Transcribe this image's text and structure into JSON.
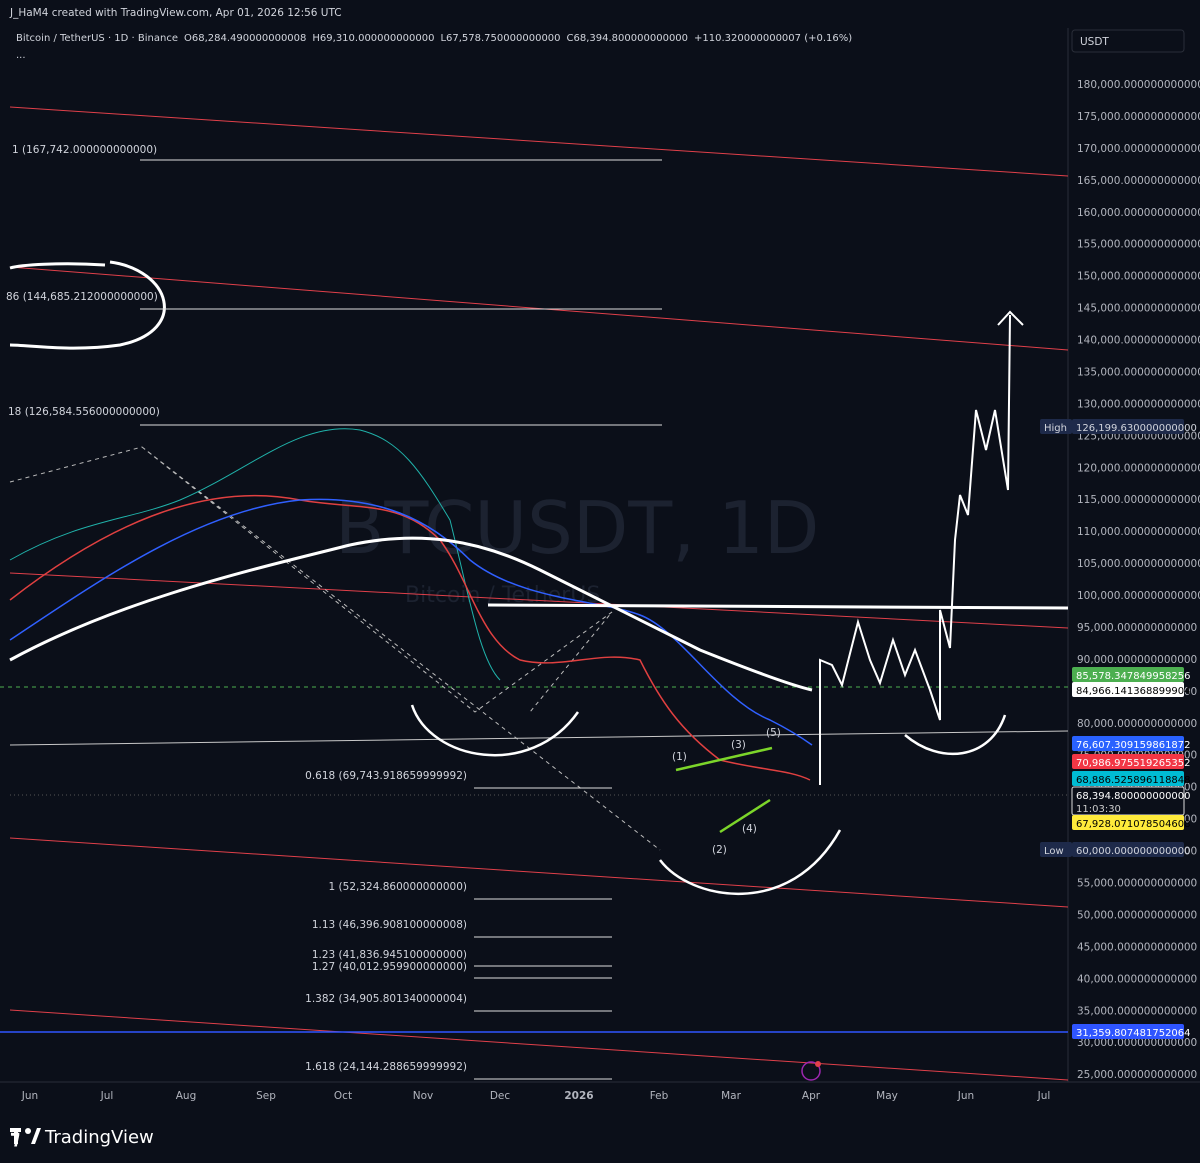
{
  "header": {
    "attribution": "J_HaM4 created with TradingView.com, Apr 01, 2026 12:56 UTC"
  },
  "legend": {
    "symbol": "Bitcoin / TetherUS · 1D · Binance",
    "open": "O68,284.490000000008",
    "high": "H69,310.000000000000",
    "low": "L67,578.750000000000",
    "close": "C68,394.800000000000",
    "change": "+110.320000000007 (+0.16%)",
    "more": "..."
  },
  "currency": "USDT",
  "watermark": {
    "ticker": "BTCUSDT, 1D",
    "name": "Bitcoin / TetherUS"
  },
  "price_axis": [
    "180,000.000000000000",
    "175,000.000000000000",
    "170,000.000000000000",
    "165,000.000000000000",
    "160,000.000000000000",
    "155,000.000000000000",
    "150,000.000000000000",
    "145,000.000000000000",
    "140,000.000000000000",
    "135,000.000000000000",
    "130,000.000000000000",
    "125,000.000000000000",
    "120,000.000000000000",
    "115,000.000000000000",
    "110,000.000000000000",
    "105,000.000000000000",
    "100,000.000000000000",
    "95,000.000000000000",
    "90,000.000000000000",
    "85,000.000000000000",
    "80,000.000000000000",
    "75,000.000000000000",
    "70,000.000000000000",
    "65,000.000000000000",
    "60,000.000000000000",
    "55,000.000000000000",
    "50,000.000000000000",
    "45,000.000000000000",
    "40,000.000000000000",
    "35,000.000000000000",
    "30,000.000000000000",
    "25,000.000000000000"
  ],
  "time_axis": [
    "Jun",
    "Jul",
    "Aug",
    "Sep",
    "Oct",
    "Nov",
    "Dec",
    "2026",
    "Feb",
    "Mar",
    "Apr",
    "May",
    "Jun",
    "Jul"
  ],
  "badges": {
    "high_label": "High",
    "high_value": "126,199.630000000000",
    "green": "85,578.347849958256",
    "white": "84,966.141368899904",
    "blue": "76,607.309159861872",
    "red": "70,986.975519265352",
    "teal": "68,886.525896118848",
    "last": "68,394.800000000000",
    "countdown": "11:03:30",
    "yellow": "67,928.071078504608",
    "low_label": "Low",
    "low_value": "60,000.000000000000",
    "blue_line": "31,359.807481752064"
  },
  "fib_levels": [
    "1 (167,742.000000000000)",
    "86 (144,685.212000000000)",
    "18 (126,584.556000000000)",
    "0.618 (69,743.918659999992)",
    "1 (52,324.860000000000)",
    "1.13 (46,396.908100000008)",
    "1.23 (41,836.945100000000)",
    "1.27 (40,012.959900000000)",
    "1.382 (34,905.801340000004)",
    "1.618 (24,144.288659999992)"
  ],
  "wave_labels": [
    "(1)",
    "(2)",
    "(3)",
    "(4)",
    "(5)"
  ],
  "footer": {
    "brand": "TradingView"
  }
}
